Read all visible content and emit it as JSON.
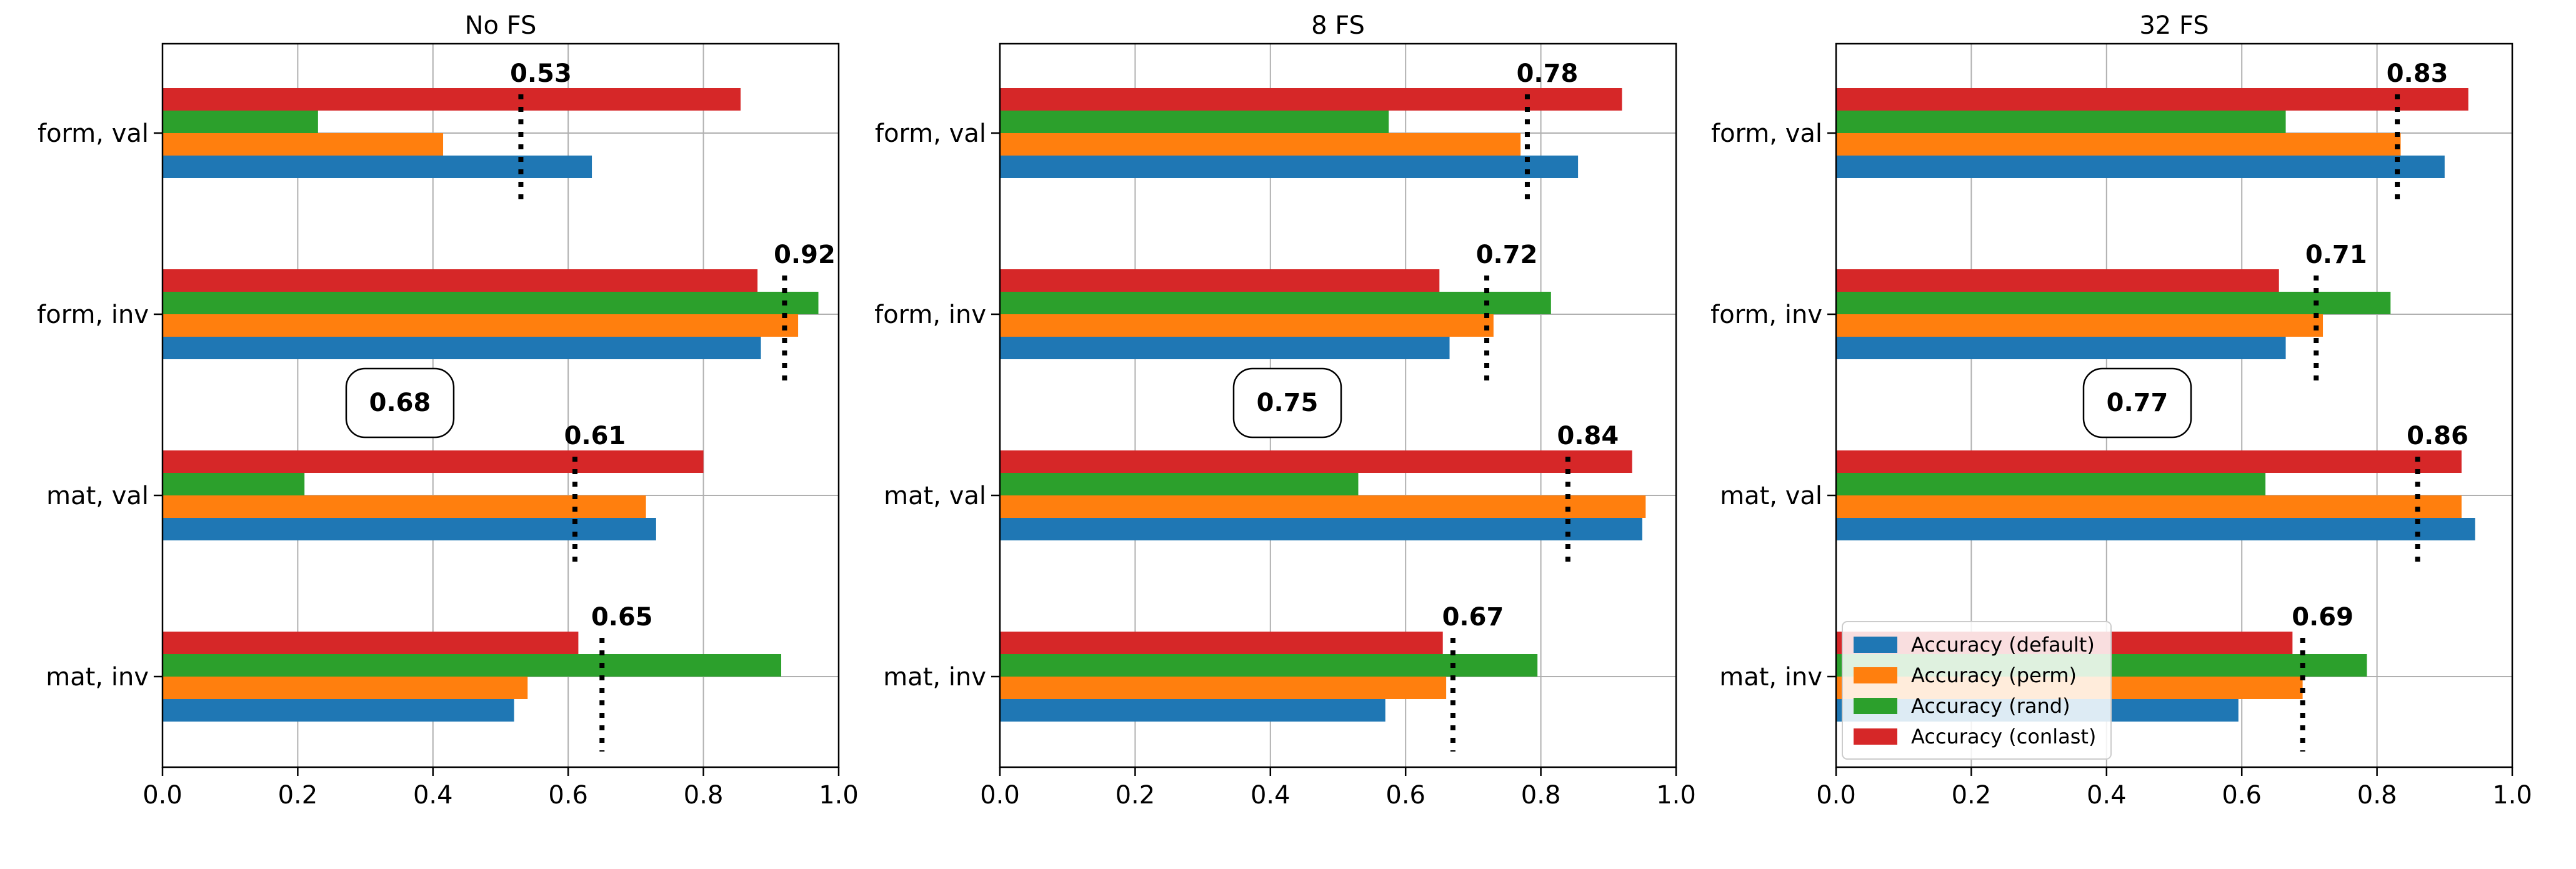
{
  "chart_data": [
    {
      "type": "bar",
      "orientation": "horizontal",
      "title": "No FS",
      "categories": [
        "form, val",
        "form, inv",
        "mat, val",
        "mat, inv"
      ],
      "series": [
        {
          "name": "Accuracy (default)",
          "color": "#1f77b4",
          "values": [
            0.635,
            0.885,
            0.73,
            0.52
          ]
        },
        {
          "name": "Accuracy (perm)",
          "color": "#ff7f0e",
          "values": [
            0.415,
            0.94,
            0.715,
            0.54
          ]
        },
        {
          "name": "Accuracy (rand)",
          "color": "#2ca02c",
          "values": [
            0.23,
            0.97,
            0.21,
            0.915
          ]
        },
        {
          "name": "Accuracy (conlast)",
          "color": "#d62728",
          "values": [
            0.855,
            0.88,
            0.8,
            0.615
          ]
        }
      ],
      "category_marks": [
        0.53,
        0.92,
        0.61,
        0.65
      ],
      "category_mark_labels": [
        "0.53",
        "0.92",
        "0.61",
        "0.65"
      ],
      "average_label": "0.68",
      "xlim": [
        0,
        1.0
      ],
      "xticks": [
        "0.0",
        "0.2",
        "0.4",
        "0.6",
        "0.8",
        "1.0"
      ],
      "grid": true
    },
    {
      "type": "bar",
      "orientation": "horizontal",
      "title": "8 FS",
      "categories": [
        "form, val",
        "form, inv",
        "mat, val",
        "mat, inv"
      ],
      "series": [
        {
          "name": "Accuracy (default)",
          "color": "#1f77b4",
          "values": [
            0.855,
            0.665,
            0.95,
            0.57
          ]
        },
        {
          "name": "Accuracy (perm)",
          "color": "#ff7f0e",
          "values": [
            0.77,
            0.73,
            0.955,
            0.66
          ]
        },
        {
          "name": "Accuracy (rand)",
          "color": "#2ca02c",
          "values": [
            0.575,
            0.815,
            0.53,
            0.795
          ]
        },
        {
          "name": "Accuracy (conlast)",
          "color": "#d62728",
          "values": [
            0.92,
            0.65,
            0.935,
            0.655
          ]
        }
      ],
      "category_marks": [
        0.78,
        0.72,
        0.84,
        0.67
      ],
      "category_mark_labels": [
        "0.78",
        "0.72",
        "0.84",
        "0.67"
      ],
      "average_label": "0.75",
      "xlim": [
        0,
        1.0
      ],
      "xticks": [
        "0.0",
        "0.2",
        "0.4",
        "0.6",
        "0.8",
        "1.0"
      ],
      "grid": true
    },
    {
      "type": "bar",
      "orientation": "horizontal",
      "title": "32 FS",
      "categories": [
        "form, val",
        "form, inv",
        "mat, val",
        "mat, inv"
      ],
      "series": [
        {
          "name": "Accuracy (default)",
          "color": "#1f77b4",
          "values": [
            0.9,
            0.665,
            0.945,
            0.595
          ]
        },
        {
          "name": "Accuracy (perm)",
          "color": "#ff7f0e",
          "values": [
            0.835,
            0.72,
            0.925,
            0.69
          ]
        },
        {
          "name": "Accuracy (rand)",
          "color": "#2ca02c",
          "values": [
            0.665,
            0.82,
            0.635,
            0.785
          ]
        },
        {
          "name": "Accuracy (conlast)",
          "color": "#d62728",
          "values": [
            0.935,
            0.655,
            0.925,
            0.675
          ]
        }
      ],
      "category_marks": [
        0.83,
        0.71,
        0.86,
        0.69
      ],
      "category_mark_labels": [
        "0.83",
        "0.71",
        "0.86",
        "0.69"
      ],
      "average_label": "0.77",
      "xlim": [
        0,
        1.0
      ],
      "xticks": [
        "0.0",
        "0.2",
        "0.4",
        "0.6",
        "0.8",
        "1.0"
      ],
      "grid": true,
      "legend": {
        "placement": "lower-left",
        "entries": [
          "Accuracy (default)",
          "Accuracy (perm)",
          "Accuracy (rand)",
          "Accuracy (conlast)"
        ]
      }
    }
  ]
}
